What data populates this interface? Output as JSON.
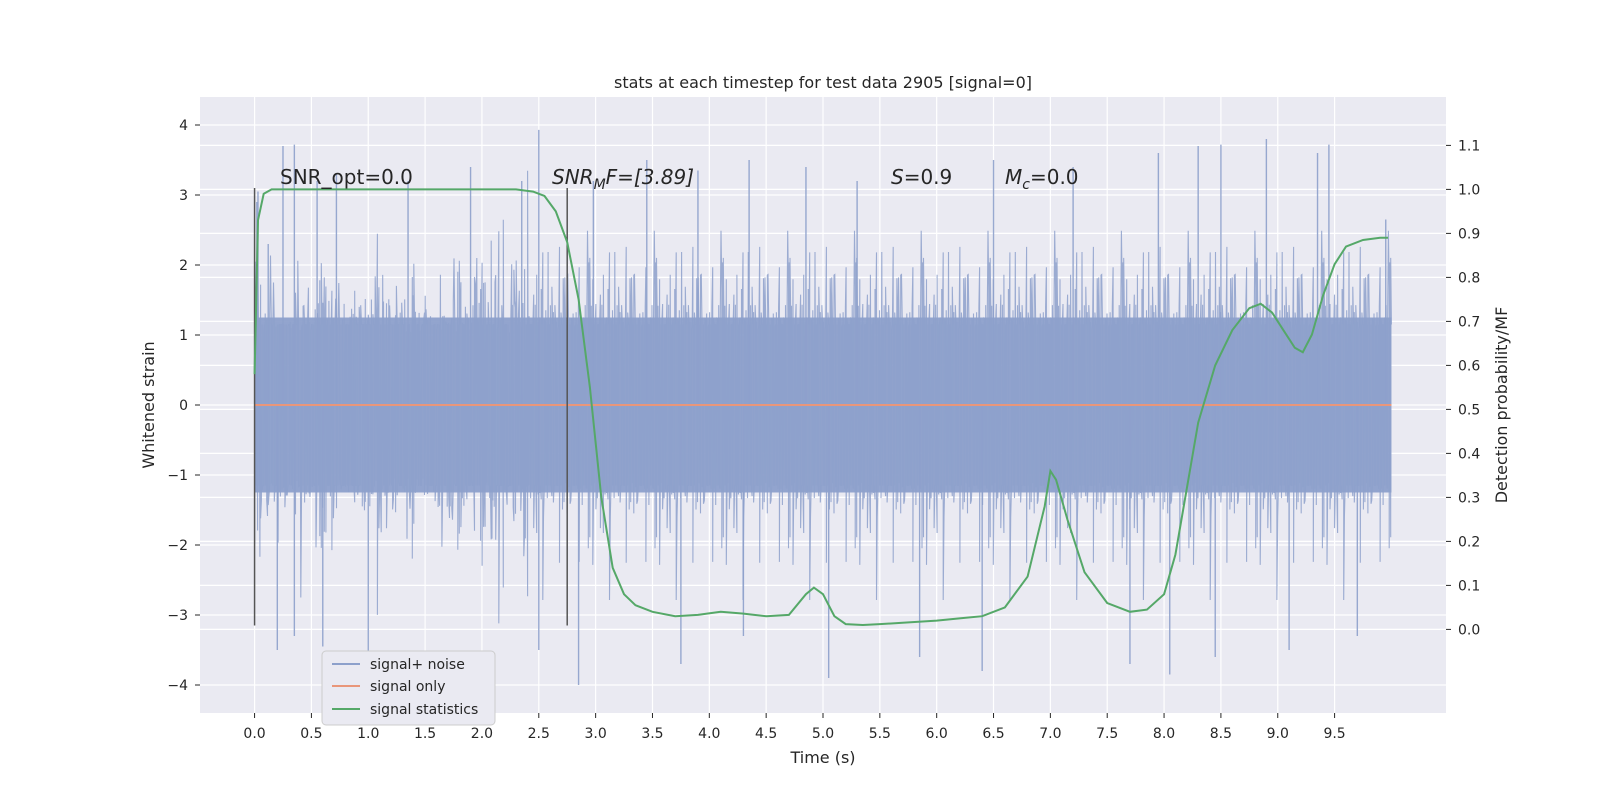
{
  "chart_data": {
    "type": "line",
    "title": "stats at each timestep for test data 2905 [signal=0]",
    "xlabel": "Time (s)",
    "ylabel": "Whitened strain",
    "y2label": "Detection probability/MF",
    "xlim": [
      -0.48,
      10.48
    ],
    "ylim": [
      -4.4,
      4.4
    ],
    "y2lim": [
      -0.19,
      1.21
    ],
    "xticks": [
      "0.0",
      "0.5",
      "1.0",
      "1.5",
      "2.0",
      "2.5",
      "3.0",
      "3.5",
      "4.0",
      "4.5",
      "5.0",
      "5.5",
      "6.0",
      "6.5",
      "7.0",
      "7.5",
      "8.0",
      "8.5",
      "9.0",
      "9.5"
    ],
    "xtick_values": [
      0,
      0.5,
      1,
      1.5,
      2,
      2.5,
      3,
      3.5,
      4,
      4.5,
      5,
      5.5,
      6,
      6.5,
      7,
      7.5,
      8,
      8.5,
      9,
      9.5
    ],
    "yticks": [
      "−4",
      "−3",
      "−2",
      "−1",
      "0",
      "1",
      "2",
      "3",
      "4"
    ],
    "ytick_values": [
      -4,
      -3,
      -2,
      -1,
      0,
      1,
      2,
      3,
      4
    ],
    "y2ticks": [
      "0.0",
      "0.1",
      "0.2",
      "0.3",
      "0.4",
      "0.5",
      "0.6",
      "0.7",
      "0.8",
      "0.9",
      "1.0",
      "1.1"
    ],
    "y2tick_values": [
      0,
      0.1,
      0.2,
      0.3,
      0.4,
      0.5,
      0.6,
      0.7,
      0.8,
      0.9,
      1.0,
      1.1
    ],
    "grid": true,
    "legend_position": "lower-left",
    "annotations": {
      "snr_opt": "SNR_opt=0.0",
      "snr_mf_prefix": "SNR",
      "snr_mf_sub": "M",
      "snr_mf_suffix": "F=[3.89]",
      "s_prefix": "S",
      "s_suffix": "=0.9",
      "mc_prefix": "M",
      "mc_sub": "c",
      "mc_suffix": "=0.0"
    },
    "markers": [
      {
        "x": 0.0,
        "ymin": -3.15,
        "ymax": 3.1
      },
      {
        "x": 2.75,
        "ymin": -3.15,
        "ymax": 3.1
      }
    ],
    "series": [
      {
        "name": "signal+ noise",
        "color": "#8da0cb",
        "kind": "noise",
        "x_range": [
          0,
          10
        ],
        "envelope_abs": 1.25,
        "peaks_high": [
          [
            0.02,
            2.9
          ],
          [
            0.03,
            3.05
          ],
          [
            0.12,
            2.3
          ],
          [
            0.25,
            3.7
          ],
          [
            0.35,
            3.72
          ],
          [
            0.55,
            3.2
          ],
          [
            0.72,
            3.3
          ],
          [
            1.35,
            3.2
          ],
          [
            1.9,
            3.4
          ],
          [
            2.35,
            3.2
          ],
          [
            2.5,
            3.93
          ],
          [
            2.98,
            3.2
          ],
          [
            3.45,
            3.5
          ],
          [
            3.9,
            3.35
          ],
          [
            4.35,
            3.5
          ],
          [
            4.85,
            3.4
          ],
          [
            5.3,
            3.2
          ],
          [
            6.5,
            3.5
          ],
          [
            7.2,
            3.4
          ],
          [
            7.95,
            3.6
          ],
          [
            8.3,
            3.7
          ],
          [
            8.5,
            3.72
          ],
          [
            8.9,
            3.8
          ],
          [
            9.35,
            3.6
          ],
          [
            9.45,
            3.72
          ],
          [
            9.95,
            2.65
          ]
        ],
        "peaks_low": [
          [
            0.2,
            -3.5
          ],
          [
            0.35,
            -3.3
          ],
          [
            0.6,
            -3.45
          ],
          [
            1.0,
            -3.6
          ],
          [
            2.5,
            -3.5
          ],
          [
            2.85,
            -4.0
          ],
          [
            3.75,
            -3.7
          ],
          [
            4.3,
            -3.3
          ],
          [
            5.05,
            -3.9
          ],
          [
            5.85,
            -3.6
          ],
          [
            6.4,
            -3.8
          ],
          [
            7.7,
            -3.7
          ],
          [
            8.05,
            -3.85
          ],
          [
            8.45,
            -3.6
          ],
          [
            9.1,
            -3.5
          ],
          [
            9.7,
            -3.3
          ]
        ]
      },
      {
        "name": "signal only",
        "color": "#e9967a",
        "x": [
          0,
          10
        ],
        "y": [
          0,
          0
        ]
      },
      {
        "name": "signal statistics",
        "color": "#55a868",
        "axis": "right",
        "x": [
          0.0,
          0.03,
          0.08,
          0.15,
          0.3,
          0.5,
          1.0,
          1.5,
          2.0,
          2.3,
          2.45,
          2.55,
          2.65,
          2.75,
          2.85,
          2.95,
          3.05,
          3.15,
          3.25,
          3.35,
          3.5,
          3.7,
          3.9,
          4.1,
          4.3,
          4.5,
          4.7,
          4.85,
          4.92,
          5.0,
          5.1,
          5.2,
          5.35,
          5.5,
          5.7,
          6.0,
          6.2,
          6.4,
          6.6,
          6.8,
          6.95,
          7.0,
          7.05,
          7.15,
          7.3,
          7.5,
          7.7,
          7.85,
          8.0,
          8.1,
          8.2,
          8.3,
          8.45,
          8.6,
          8.75,
          8.85,
          8.95,
          9.05,
          9.15,
          9.22,
          9.3,
          9.4,
          9.5,
          9.6,
          9.75,
          9.9,
          9.97
        ],
        "y": [
          0.58,
          0.93,
          0.99,
          1.0,
          1.0,
          1.0,
          1.0,
          1.0,
          1.0,
          1.0,
          0.995,
          0.985,
          0.95,
          0.88,
          0.75,
          0.55,
          0.3,
          0.14,
          0.08,
          0.055,
          0.04,
          0.03,
          0.033,
          0.04,
          0.036,
          0.03,
          0.033,
          0.08,
          0.095,
          0.08,
          0.03,
          0.012,
          0.01,
          0.012,
          0.015,
          0.02,
          0.025,
          0.03,
          0.05,
          0.12,
          0.28,
          0.36,
          0.34,
          0.25,
          0.13,
          0.06,
          0.04,
          0.045,
          0.08,
          0.17,
          0.32,
          0.47,
          0.6,
          0.68,
          0.73,
          0.74,
          0.72,
          0.68,
          0.64,
          0.63,
          0.67,
          0.76,
          0.83,
          0.87,
          0.885,
          0.89,
          0.89
        ]
      }
    ]
  }
}
